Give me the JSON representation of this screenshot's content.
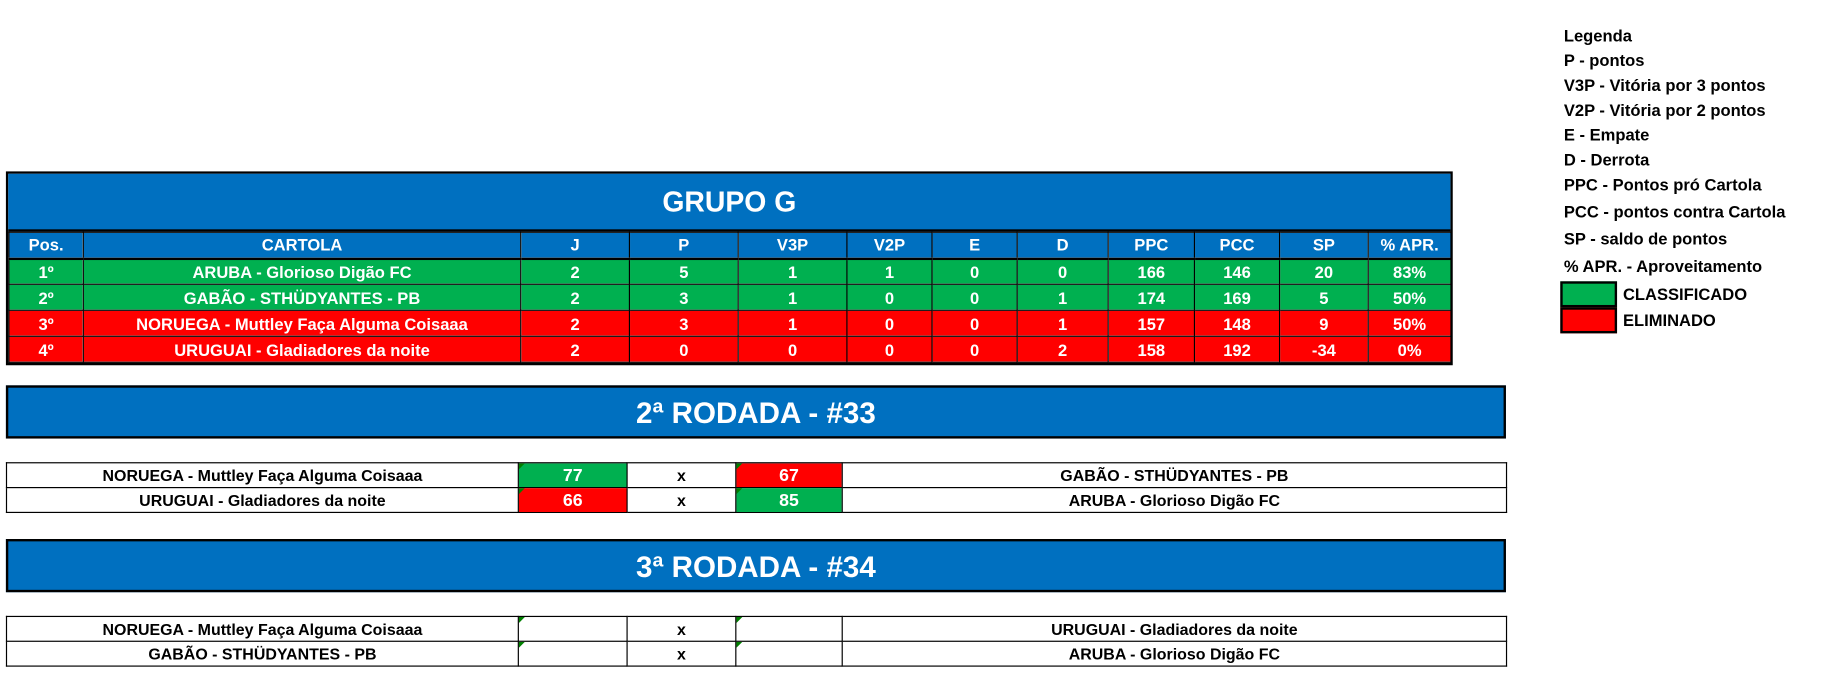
{
  "colors": {
    "header": "#0070c0",
    "classified": "#00b050",
    "eliminated": "#ff0000"
  },
  "group": {
    "title": "GRUPO G",
    "columns": [
      "Pos.",
      "CARTOLA",
      "J",
      "P",
      "V3P",
      "V2P",
      "E",
      "D",
      "PPC",
      "PCC",
      "SP",
      "% APR."
    ],
    "rows": [
      {
        "status": "classified",
        "cells": [
          "1º",
          "ARUBA - Glorioso Digão FC",
          "2",
          "5",
          "1",
          "1",
          "0",
          "0",
          "166",
          "146",
          "20",
          "83%"
        ]
      },
      {
        "status": "classified",
        "cells": [
          "2º",
          "GABÃO - STHÜDYANTES - PB",
          "2",
          "3",
          "1",
          "0",
          "0",
          "1",
          "174",
          "169",
          "5",
          "50%"
        ]
      },
      {
        "status": "eliminated",
        "cells": [
          "3º",
          "NORUEGA  - Muttley Faça Alguma Coisaaa",
          "2",
          "3",
          "1",
          "0",
          "0",
          "1",
          "157",
          "148",
          "9",
          "50%"
        ]
      },
      {
        "status": "eliminated",
        "cells": [
          "4º",
          "URUGUAI - Gladiadores da noite",
          "2",
          "0",
          "0",
          "0",
          "0",
          "2",
          "158",
          "192",
          "-34",
          "0%"
        ]
      }
    ]
  },
  "rounds": [
    {
      "title": "2ª RODADA - #33",
      "matches": [
        {
          "home": "NORUEGA  - Muttley Faça Alguma Coisaaa",
          "home_score": "77",
          "home_result": "green",
          "sep": "x",
          "away_score": "67",
          "away_result": "red",
          "away": "GABÃO - STHÜDYANTES - PB"
        },
        {
          "home": "URUGUAI - Gladiadores da noite",
          "home_score": "66",
          "home_result": "red",
          "sep": "x",
          "away_score": "85",
          "away_result": "green",
          "away": "ARUBA - Glorioso Digão FC"
        }
      ]
    },
    {
      "title": "3ª RODADA - #34",
      "matches": [
        {
          "home": "NORUEGA  - Muttley Faça Alguma Coisaaa",
          "home_score": "",
          "home_result": "",
          "sep": "x",
          "away_score": "",
          "away_result": "",
          "away": "URUGUAI - Gladiadores da noite"
        },
        {
          "home": "GABÃO - STHÜDYANTES - PB",
          "home_score": "",
          "home_result": "",
          "sep": "x",
          "away_score": "",
          "away_result": "",
          "away": "ARUBA - Glorioso Digão FC"
        }
      ]
    }
  ],
  "legend": {
    "lines": [
      "Legenda",
      "P - pontos",
      "V3P - Vitória por 3 pontos",
      "V2P - Vitória por 2 pontos",
      "E - Empate",
      "D - Derrota",
      "PPC - Pontos pró Cartola",
      "PCC - pontos contra Cartola",
      "SP - saldo de pontos",
      "% APR. - Aproveitamento"
    ],
    "classified": "CLASSIFICADO",
    "eliminated": "ELIMINADO"
  }
}
